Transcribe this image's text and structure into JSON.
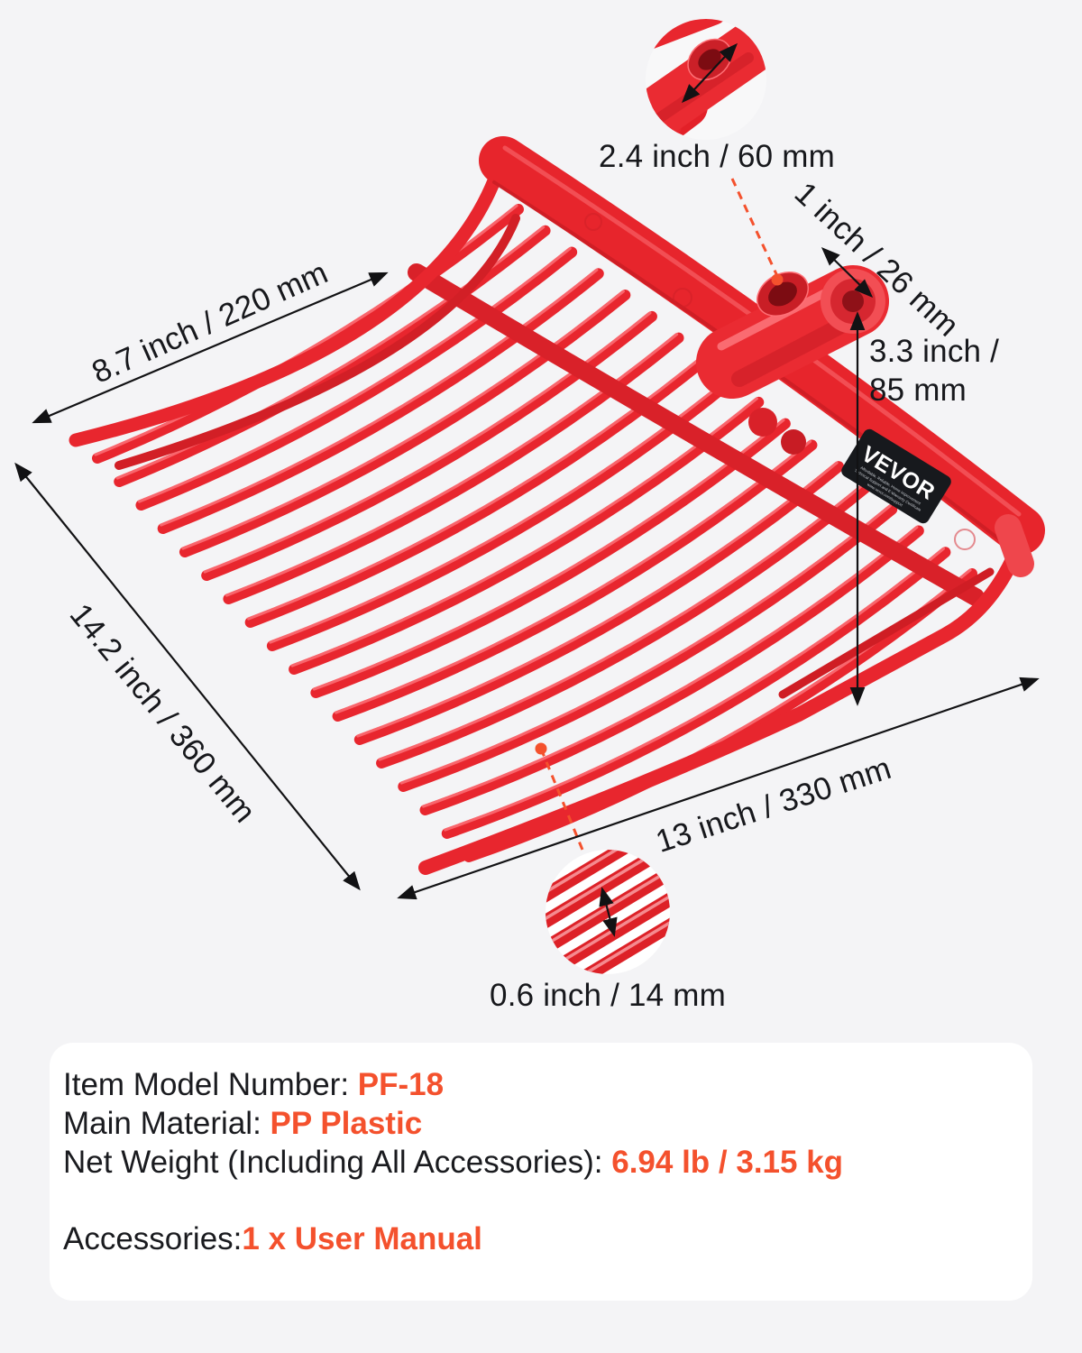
{
  "brand_label": {
    "name": "VEVOR",
    "line1": "Affordable, Reliable, Home Improvement",
    "line2": "Technical Support and E-Warranty Certificate",
    "line3": "www.vevor.com/support"
  },
  "dimensions": {
    "socket_hole": "2.4 inch / 60 mm",
    "socket_diameter": "1 inch / 26 mm",
    "socket_height": "3.3 inch / 85 mm",
    "top_edge": "8.7 inch / 220 mm",
    "side_edge": "14.2 inch / 360 mm",
    "bottom_edge": "13 inch / 330 mm",
    "tine_spacing": "0.6 inch / 14 mm"
  },
  "specs": {
    "item_model_label": "Item Model Number: ",
    "item_model_value": "PF-18",
    "material_label": "Main Material: ",
    "material_value": "PP Plastic",
    "weight_label": "Net Weight (Including All Accessories): ",
    "weight_value": "6.94 lb / 3.15 kg",
    "accessories_label": "Accessories:",
    "accessories_value": "1 x User Manual"
  },
  "colors": {
    "background": "#f4f4f6",
    "card_white": "#ffffff",
    "text_black": "#17181c",
    "accent_orange": "#f4512d",
    "fork_red": "#e8262e",
    "fork_red_dark": "#c21a21",
    "fork_red_light": "#ff7b81",
    "label_black": "#17191d"
  }
}
